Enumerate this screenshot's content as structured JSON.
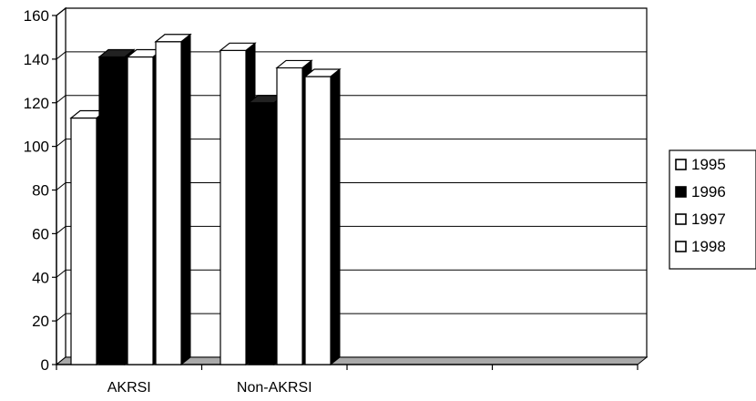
{
  "chart_data": {
    "type": "bar",
    "title": "",
    "xlabel": "",
    "ylabel": "",
    "categories": [
      "AKRSI",
      "Non-AKRSI"
    ],
    "series": [
      {
        "name": "1995",
        "values": [
          113,
          144
        ],
        "fill": "#ffffff"
      },
      {
        "name": "1996",
        "values": [
          141,
          120
        ],
        "fill": "#000000"
      },
      {
        "name": "1997",
        "values": [
          141,
          136
        ],
        "fill": "#ffffff"
      },
      {
        "name": "1998",
        "values": [
          148,
          132
        ],
        "fill": "#ffffff"
      }
    ],
    "ylim": [
      0,
      160
    ],
    "yticks": [
      "0",
      "20",
      "40",
      "60",
      "80",
      "100",
      "120",
      "140",
      "160"
    ],
    "grid": true,
    "legend_position": "right",
    "style": "3d-column"
  }
}
